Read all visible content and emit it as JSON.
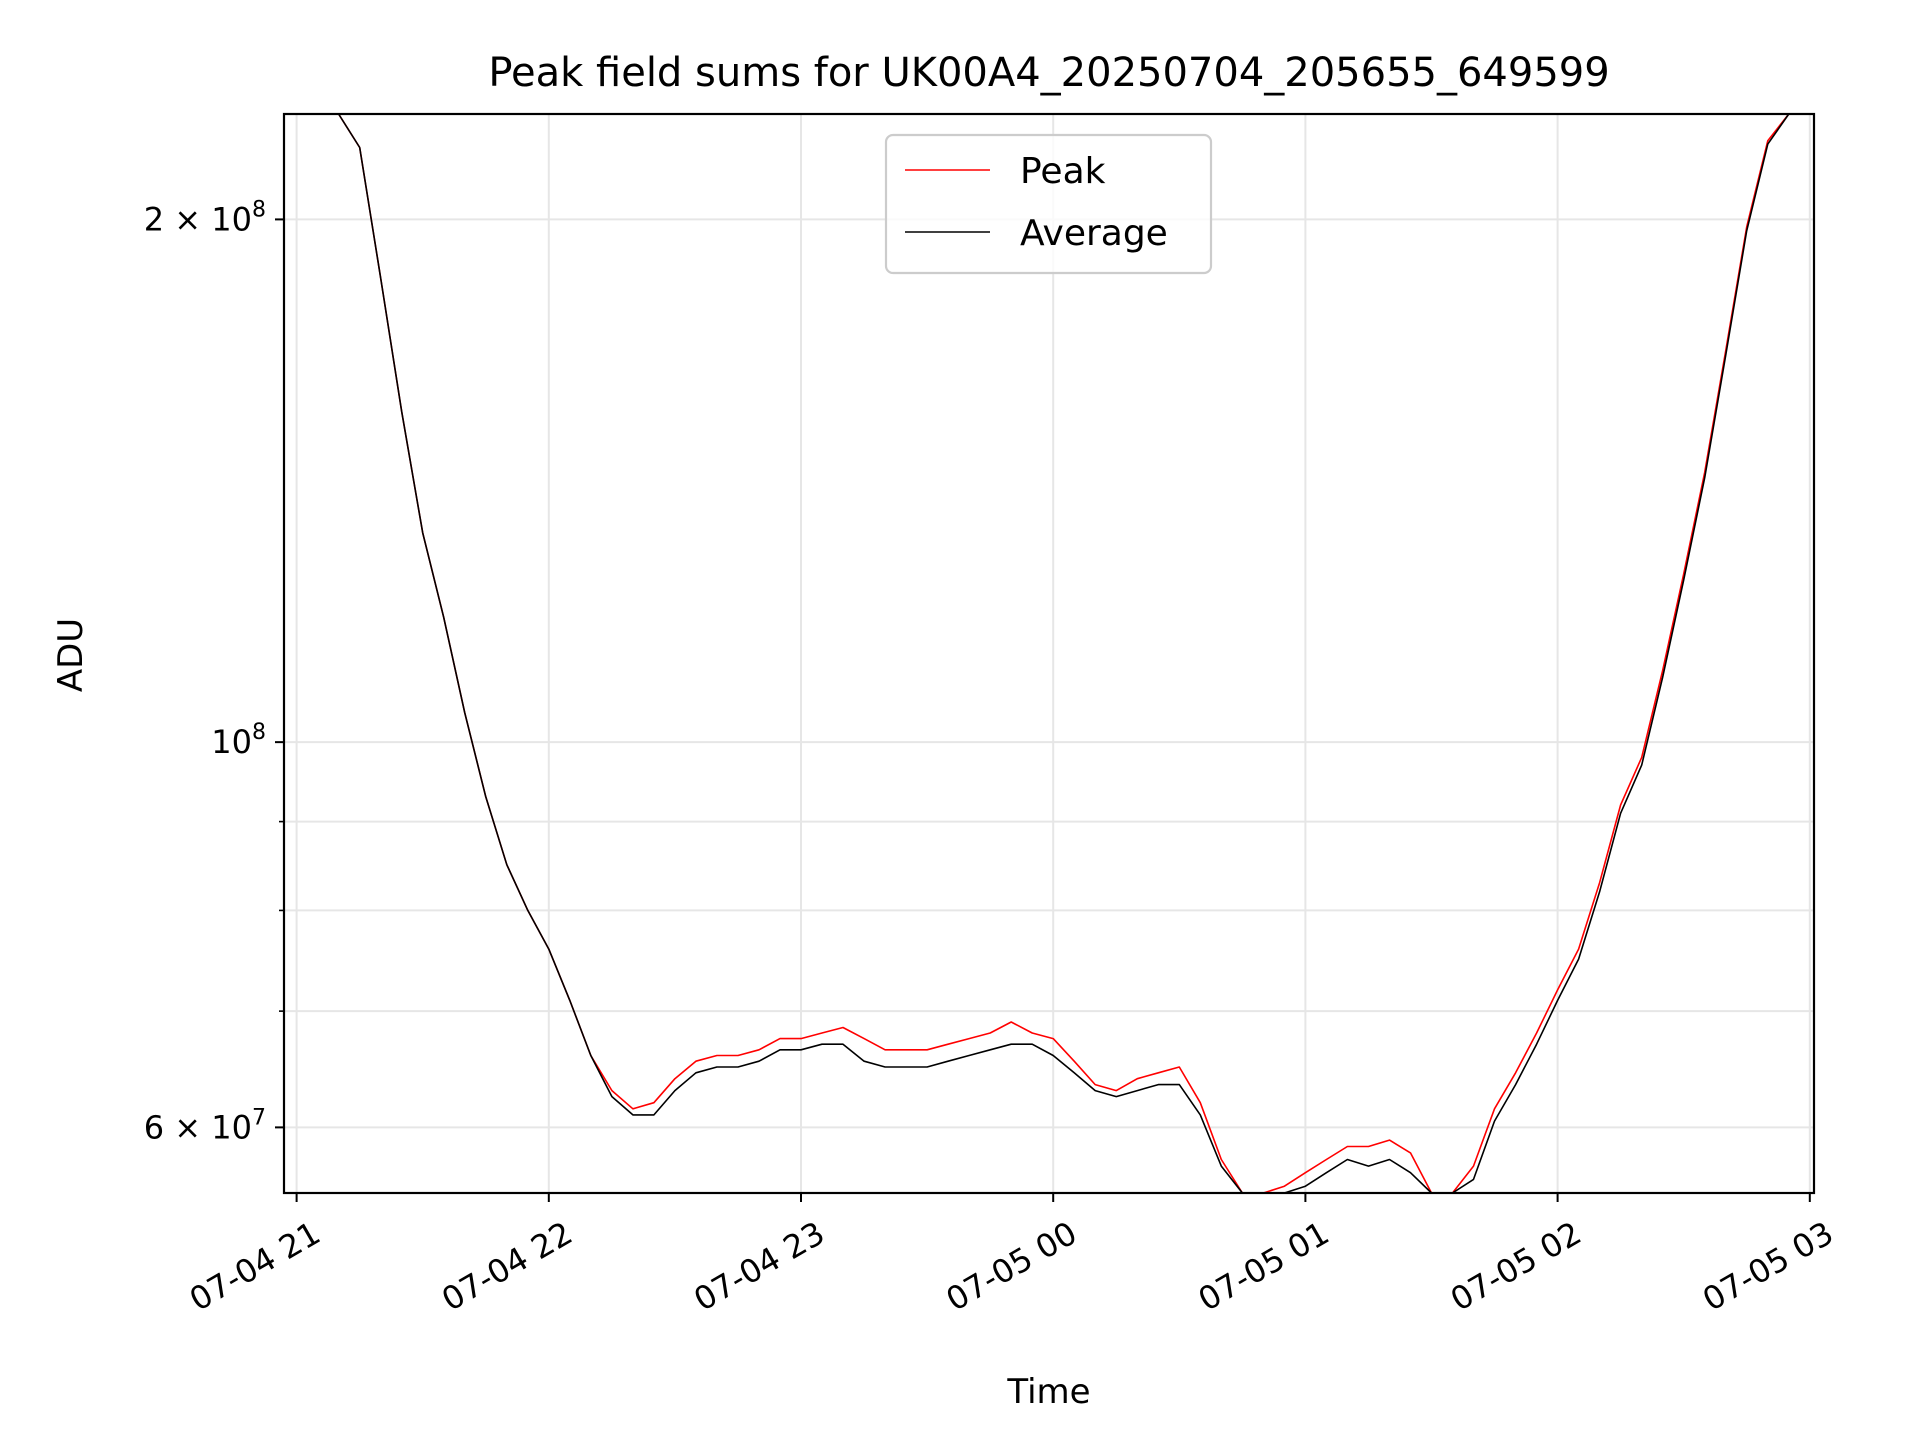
{
  "chart_data": {
    "type": "line",
    "title": "Peak field sums for UK00A4_20250704_205655_649599",
    "xlabel": "Time",
    "ylabel": "ADU",
    "yscale": "log",
    "xlim": [
      "2025-07-04 20:57",
      "2025-07-05 03:01"
    ],
    "ylim": [
      55000000,
      230000000
    ],
    "grid": true,
    "legend_position": "top-center",
    "x_tick_labels": [
      "07-04 21",
      "07-04 22",
      "07-04 23",
      "07-05 00",
      "07-05 01",
      "07-05 02",
      "07-05 03"
    ],
    "x_ticks": [
      "2025-07-04 21:00",
      "2025-07-04 22:00",
      "2025-07-04 23:00",
      "2025-07-05 00:00",
      "2025-07-05 01:00",
      "2025-07-05 02:00",
      "2025-07-05 03:00"
    ],
    "y_major_ticks": [
      {
        "value": 60000000,
        "base": "6 × 10",
        "exp": "7"
      },
      {
        "value": 100000000,
        "base": "10",
        "exp": "8"
      },
      {
        "value": 200000000,
        "base": "2 × 10",
        "exp": "8"
      }
    ],
    "y_minor_ticks": [
      70000000,
      80000000,
      90000000
    ],
    "colors": {
      "peak": "#ff0000",
      "average": "#000000",
      "grid": "#e6e6e6"
    },
    "series": [
      {
        "name": "Peak",
        "color": "#ff0000",
        "x": [
          "2025-07-04 20:57",
          "2025-07-04 21:05",
          "2025-07-04 21:10",
          "2025-07-04 21:15",
          "2025-07-04 21:20",
          "2025-07-04 21:25",
          "2025-07-04 21:30",
          "2025-07-04 21:35",
          "2025-07-04 21:40",
          "2025-07-04 21:45",
          "2025-07-04 21:50",
          "2025-07-04 21:55",
          "2025-07-04 22:00",
          "2025-07-04 22:05",
          "2025-07-04 22:10",
          "2025-07-04 22:15",
          "2025-07-04 22:20",
          "2025-07-04 22:25",
          "2025-07-04 22:30",
          "2025-07-04 22:35",
          "2025-07-04 22:40",
          "2025-07-04 22:45",
          "2025-07-04 22:50",
          "2025-07-04 22:55",
          "2025-07-04 23:00",
          "2025-07-04 23:05",
          "2025-07-04 23:10",
          "2025-07-04 23:15",
          "2025-07-04 23:20",
          "2025-07-04 23:25",
          "2025-07-04 23:30",
          "2025-07-04 23:35",
          "2025-07-04 23:40",
          "2025-07-04 23:45",
          "2025-07-04 23:50",
          "2025-07-04 23:55",
          "2025-07-05 00:00",
          "2025-07-05 00:05",
          "2025-07-05 00:10",
          "2025-07-05 00:15",
          "2025-07-05 00:20",
          "2025-07-05 00:25",
          "2025-07-05 00:30",
          "2025-07-05 00:35",
          "2025-07-05 00:40",
          "2025-07-05 00:45",
          "2025-07-05 00:50",
          "2025-07-05 00:55",
          "2025-07-05 01:00",
          "2025-07-05 01:05",
          "2025-07-05 01:10",
          "2025-07-05 01:15",
          "2025-07-05 01:20",
          "2025-07-05 01:25",
          "2025-07-05 01:30",
          "2025-07-05 01:35",
          "2025-07-05 01:40",
          "2025-07-05 01:45",
          "2025-07-05 01:50",
          "2025-07-05 01:55",
          "2025-07-05 02:00",
          "2025-07-05 02:05",
          "2025-07-05 02:10",
          "2025-07-05 02:15",
          "2025-07-05 02:20",
          "2025-07-05 02:25",
          "2025-07-05 02:30",
          "2025-07-05 02:35",
          "2025-07-05 02:40",
          "2025-07-05 02:45",
          "2025-07-05 02:50",
          "2025-07-05 02:55",
          "2025-07-05 03:00"
        ],
        "y": [
          235000000,
          235000000,
          232000000,
          220000000,
          185000000,
          155000000,
          132000000,
          118000000,
          104000000,
          93000000,
          85000000,
          80000000,
          76000000,
          71000000,
          66000000,
          63000000,
          61500000,
          62000000,
          64000000,
          65500000,
          66000000,
          66000000,
          66500000,
          67500000,
          67500000,
          68000000,
          68500000,
          67500000,
          66500000,
          66500000,
          66500000,
          67000000,
          67500000,
          68000000,
          69000000,
          68000000,
          67500000,
          65500000,
          63500000,
          63000000,
          64000000,
          64500000,
          65000000,
          62000000,
          57500000,
          54000000,
          52500000,
          55500000,
          56500000,
          57500000,
          58500000,
          58500000,
          59000000,
          58000000,
          54000000,
          53000000,
          57000000,
          61500000,
          64500000,
          68000000,
          72000000,
          76000000,
          83000000,
          92000000,
          98000000,
          110000000,
          125000000,
          143000000,
          168000000,
          198000000,
          222000000,
          235000000,
          235000000
        ]
      },
      {
        "name": "Average",
        "color": "#000000",
        "x": [
          "2025-07-04 20:57",
          "2025-07-04 21:05",
          "2025-07-04 21:10",
          "2025-07-04 21:15",
          "2025-07-04 21:20",
          "2025-07-04 21:25",
          "2025-07-04 21:30",
          "2025-07-04 21:35",
          "2025-07-04 21:40",
          "2025-07-04 21:45",
          "2025-07-04 21:50",
          "2025-07-04 21:55",
          "2025-07-04 22:00",
          "2025-07-04 22:05",
          "2025-07-04 22:10",
          "2025-07-04 22:15",
          "2025-07-04 22:20",
          "2025-07-04 22:25",
          "2025-07-04 22:30",
          "2025-07-04 22:35",
          "2025-07-04 22:40",
          "2025-07-04 22:45",
          "2025-07-04 22:50",
          "2025-07-04 22:55",
          "2025-07-04 23:00",
          "2025-07-04 23:05",
          "2025-07-04 23:10",
          "2025-07-04 23:15",
          "2025-07-04 23:20",
          "2025-07-04 23:25",
          "2025-07-04 23:30",
          "2025-07-04 23:35",
          "2025-07-04 23:40",
          "2025-07-04 23:45",
          "2025-07-04 23:50",
          "2025-07-04 23:55",
          "2025-07-05 00:00",
          "2025-07-05 00:05",
          "2025-07-05 00:10",
          "2025-07-05 00:15",
          "2025-07-05 00:20",
          "2025-07-05 00:25",
          "2025-07-05 00:30",
          "2025-07-05 00:35",
          "2025-07-05 00:40",
          "2025-07-05 00:45",
          "2025-07-05 00:50",
          "2025-07-05 00:55",
          "2025-07-05 01:00",
          "2025-07-05 01:05",
          "2025-07-05 01:10",
          "2025-07-05 01:15",
          "2025-07-05 01:20",
          "2025-07-05 01:25",
          "2025-07-05 01:30",
          "2025-07-05 01:35",
          "2025-07-05 01:40",
          "2025-07-05 01:45",
          "2025-07-05 01:50",
          "2025-07-05 01:55",
          "2025-07-05 02:00",
          "2025-07-05 02:05",
          "2025-07-05 02:10",
          "2025-07-05 02:15",
          "2025-07-05 02:20",
          "2025-07-05 02:25",
          "2025-07-05 02:30",
          "2025-07-05 02:35",
          "2025-07-05 02:40",
          "2025-07-05 02:45",
          "2025-07-05 02:50",
          "2025-07-05 02:55",
          "2025-07-05 03:00"
        ],
        "y": [
          235000000,
          235000000,
          232000000,
          220000000,
          185000000,
          155000000,
          132000000,
          118000000,
          104000000,
          93000000,
          85000000,
          80000000,
          76000000,
          71000000,
          66000000,
          62500000,
          61000000,
          61000000,
          63000000,
          64500000,
          65000000,
          65000000,
          65500000,
          66500000,
          66500000,
          67000000,
          67000000,
          65500000,
          65000000,
          65000000,
          65000000,
          65500000,
          66000000,
          66500000,
          67000000,
          67000000,
          66000000,
          64500000,
          63000000,
          62500000,
          63000000,
          63500000,
          63500000,
          61000000,
          57000000,
          53500000,
          52500000,
          54500000,
          55500000,
          56500000,
          57500000,
          57000000,
          57500000,
          56500000,
          53000000,
          52500000,
          56000000,
          60500000,
          63500000,
          67000000,
          71000000,
          75000000,
          82000000,
          91000000,
          97000000,
          109000000,
          124000000,
          142000000,
          167000000,
          197000000,
          221000000,
          235000000,
          235000000
        ]
      }
    ]
  }
}
